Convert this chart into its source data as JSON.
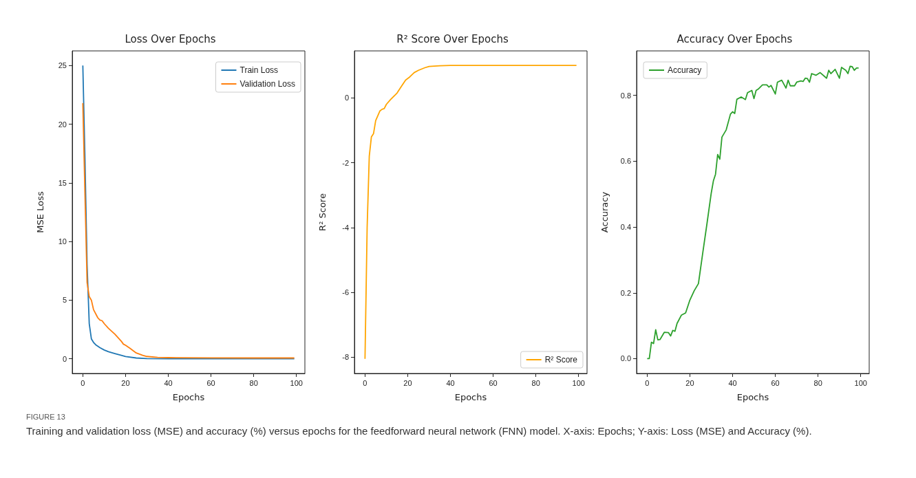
{
  "chart_data": [
    {
      "type": "line",
      "title": "Loss Over Epochs",
      "xlabel": "Epochs",
      "ylabel": "MSE Loss",
      "xlim": [
        -4.95,
        103.95
      ],
      "ylim": [
        -1.25,
        26.25
      ],
      "xticks": [
        0,
        20,
        40,
        60,
        80,
        100
      ],
      "yticks": [
        0,
        5,
        10,
        15,
        20,
        25
      ],
      "grid": false,
      "legend": "top right",
      "marker": "none",
      "line_style": "solid",
      "annotations": [
        "FIGURE 13",
        "Training and validation loss (MSE) and accuracy (%) versus epochs for the feedforward neural network (FNN) model. X-axis: Epochs; Y-axis: Loss (MSE) and Accuracy (%)."
      ],
      "series": [
        {
          "name": "Train Loss",
          "color": "#1f77b4",
          "x": [
            0,
            1,
            2,
            3,
            4,
            5,
            6,
            8,
            10,
            12,
            15,
            18,
            20,
            25,
            30,
            40,
            60,
            80,
            99
          ],
          "values": [
            25,
            17,
            8,
            3,
            1.7,
            1.4,
            1.2,
            0.95,
            0.75,
            0.6,
            0.45,
            0.3,
            0.2,
            0.07,
            0.02,
            0,
            0,
            0,
            0
          ]
        },
        {
          "name": "Validation Loss",
          "color": "#ff7f0e",
          "x": [
            0,
            1,
            2,
            3,
            4,
            5,
            7,
            8,
            9,
            10,
            12,
            15,
            18,
            19,
            20,
            22,
            25,
            28,
            30,
            35,
            40,
            60,
            80,
            99
          ],
          "values": [
            21.8,
            14,
            6.5,
            5.3,
            5.0,
            4.2,
            3.5,
            3.3,
            3.25,
            3.0,
            2.6,
            2.1,
            1.5,
            1.25,
            1.15,
            0.9,
            0.5,
            0.3,
            0.2,
            0.12,
            0.1,
            0.08,
            0.07,
            0.07
          ]
        }
      ]
    },
    {
      "type": "line",
      "title": "R² Score Over Epochs",
      "xlabel": "Epochs",
      "ylabel": "R² Score",
      "xlim": [
        -4.95,
        103.95
      ],
      "ylim": [
        -8.5,
        1.45
      ],
      "xticks": [
        0,
        20,
        40,
        60,
        80,
        100
      ],
      "yticks": [
        -8,
        -6,
        -4,
        -2,
        0
      ],
      "grid": false,
      "legend": "bottom right",
      "marker": "none",
      "line_style": "solid",
      "series": [
        {
          "name": "R² Score",
          "color": "#ffa500",
          "x": [
            0,
            1,
            2,
            3,
            4,
            5,
            7,
            8,
            9,
            10,
            12,
            15,
            17,
            19,
            21,
            23,
            25,
            28,
            30,
            35,
            40,
            60,
            99
          ],
          "values": [
            -8.05,
            -4.0,
            -1.8,
            -1.2,
            -1.1,
            -0.7,
            -0.4,
            -0.35,
            -0.33,
            -0.2,
            -0.05,
            0.15,
            0.35,
            0.55,
            0.65,
            0.78,
            0.85,
            0.93,
            0.97,
            0.99,
            1.0,
            1.0,
            1.0
          ]
        }
      ]
    },
    {
      "type": "line",
      "title": "Accuracy Over Epochs",
      "xlabel": "Epochs",
      "ylabel": "Accuracy",
      "xlim": [
        -4.95,
        103.95
      ],
      "ylim": [
        -0.045,
        0.935
      ],
      "xticks": [
        0,
        20,
        40,
        60,
        80,
        100
      ],
      "yticks": [
        {
          "value": 0,
          "label": "0.0"
        },
        0.2,
        0.4,
        0.6,
        0.8
      ],
      "grid": false,
      "legend": "top left",
      "marker": "none",
      "line_style": "solid",
      "series": [
        {
          "name": "Accuracy",
          "color": "#2ca02c",
          "x": [
            0,
            1,
            2,
            3,
            4,
            5,
            6,
            8,
            10,
            11,
            12,
            13,
            14,
            16,
            18,
            20,
            22,
            24,
            26,
            28,
            30,
            31,
            32,
            33,
            34,
            35,
            37,
            39,
            40,
            41,
            42,
            44,
            46,
            47,
            49,
            50,
            51,
            52,
            54,
            56,
            57,
            58,
            60,
            61,
            63,
            65,
            66,
            67,
            69,
            70,
            72,
            73,
            74,
            75,
            76,
            77,
            79,
            81,
            84,
            85,
            86,
            88,
            90,
            91,
            93,
            94,
            95,
            96,
            97,
            98,
            99
          ],
          "values": [
            0,
            0,
            0.05,
            0.046,
            0.088,
            0.057,
            0.058,
            0.08,
            0.079,
            0.069,
            0.086,
            0.083,
            0.107,
            0.132,
            0.139,
            0.178,
            0.206,
            0.228,
            0.32,
            0.41,
            0.503,
            0.54,
            0.56,
            0.62,
            0.606,
            0.673,
            0.695,
            0.743,
            0.75,
            0.745,
            0.788,
            0.795,
            0.787,
            0.808,
            0.815,
            0.79,
            0.815,
            0.819,
            0.832,
            0.832,
            0.825,
            0.83,
            0.804,
            0.84,
            0.846,
            0.822,
            0.846,
            0.829,
            0.829,
            0.84,
            0.844,
            0.842,
            0.852,
            0.851,
            0.84,
            0.866,
            0.861,
            0.869,
            0.852,
            0.876,
            0.866,
            0.879,
            0.852,
            0.885,
            0.876,
            0.866,
            0.888,
            0.887,
            0.876,
            0.883,
            0.883
          ]
        }
      ]
    }
  ]
}
